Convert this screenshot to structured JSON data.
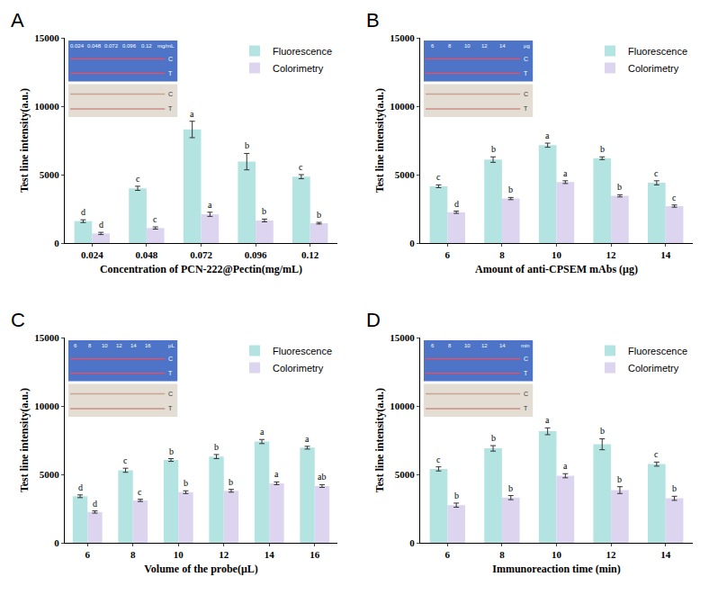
{
  "chart_data": [
    {
      "type": "bar",
      "panel": "A",
      "x_label": "Concentration of PCN-222@Pectin(mg/mL)",
      "y_label": "Test line intensity(a.u.)",
      "categories": [
        "0.024",
        "0.048",
        "0.072",
        "0.096",
        "0.12"
      ],
      "series": [
        {
          "name": "Fluorescence",
          "color": "#b4e4e2",
          "values": [
            1600,
            4000,
            8300,
            5950,
            4850
          ],
          "errors": [
            100,
            150,
            600,
            600,
            150
          ],
          "letters": [
            "d",
            "c",
            "a",
            "b",
            "c"
          ]
        },
        {
          "name": "Colorimetry",
          "color": "#ddd5f0",
          "values": [
            700,
            1100,
            2100,
            1650,
            1450
          ],
          "errors": [
            80,
            80,
            150,
            100,
            60
          ],
          "letters": [
            "d",
            "c",
            "a",
            "b",
            "b"
          ]
        }
      ],
      "ylim": [
        0,
        15000
      ],
      "yticks": [
        0,
        5000,
        10000,
        15000
      ],
      "grid": false,
      "legend": "upper right",
      "inset": {
        "labels": [
          "0.024",
          "0.048",
          "0.072",
          "0.096",
          "0.12"
        ],
        "unit": "mg/mL",
        "lines": [
          "C",
          "T"
        ]
      }
    },
    {
      "type": "bar",
      "panel": "B",
      "x_label": "Amount of anti-CPSEM mAbs (μg)",
      "y_label": "Test line intensity(a.u.)",
      "categories": [
        "6",
        "8",
        "10",
        "12",
        "14"
      ],
      "series": [
        {
          "name": "Fluorescence",
          "color": "#b4e4e2",
          "values": [
            4150,
            6100,
            7150,
            6200,
            4400
          ],
          "errors": [
            100,
            200,
            150,
            100,
            150
          ],
          "letters": [
            "c",
            "b",
            "a",
            "b",
            "c"
          ]
        },
        {
          "name": "Colorimetry",
          "color": "#ddd5f0",
          "values": [
            2250,
            3250,
            4450,
            3450,
            2700
          ],
          "errors": [
            80,
            80,
            100,
            80,
            80
          ],
          "letters": [
            "d",
            "b",
            "a",
            "b",
            "c"
          ]
        }
      ],
      "ylim": [
        0,
        15000
      ],
      "yticks": [
        0,
        5000,
        10000,
        15000
      ],
      "grid": false,
      "legend": "upper right",
      "inset": {
        "labels": [
          "6",
          "8",
          "10",
          "12",
          "14"
        ],
        "unit": "μg",
        "lines": [
          "C",
          "T"
        ]
      }
    },
    {
      "type": "bar",
      "panel": "C",
      "x_label": "Volume of the probe(μL)",
      "y_label": "Test line intensity(a.u.)",
      "categories": [
        "6",
        "8",
        "10",
        "12",
        "14",
        "16"
      ],
      "series": [
        {
          "name": "Fluorescence",
          "color": "#b4e4e2",
          "values": [
            3400,
            5300,
            6050,
            6300,
            7400,
            6950
          ],
          "errors": [
            100,
            150,
            100,
            150,
            150,
            100
          ],
          "letters": [
            "d",
            "c",
            "b",
            "b",
            "a",
            "a"
          ]
        },
        {
          "name": "Colorimetry",
          "color": "#ddd5f0",
          "values": [
            2250,
            3100,
            3700,
            3800,
            4350,
            4150
          ],
          "errors": [
            80,
            80,
            100,
            100,
            100,
            100
          ],
          "letters": [
            "d",
            "c",
            "b",
            "b",
            "a",
            "ab"
          ]
        }
      ],
      "ylim": [
        0,
        15000
      ],
      "yticks": [
        0,
        5000,
        10000,
        15000
      ],
      "grid": false,
      "legend": "upper right",
      "inset": {
        "labels": [
          "6",
          "8",
          "10",
          "12",
          "14",
          "16"
        ],
        "unit": "μL",
        "lines": [
          "C",
          "T"
        ]
      }
    },
    {
      "type": "bar",
      "panel": "D",
      "x_label": "Immunoreaction time (min)",
      "y_label": "Test line intensity(a.u.)",
      "categories": [
        "6",
        "8",
        "10",
        "12",
        "14"
      ],
      "series": [
        {
          "name": "Fluorescence",
          "color": "#b4e4e2",
          "values": [
            5400,
            6900,
            8150,
            7200,
            5750
          ],
          "errors": [
            150,
            200,
            250,
            400,
            150
          ],
          "letters": [
            "c",
            "b",
            "a",
            "b",
            "c"
          ]
        },
        {
          "name": "Colorimetry",
          "color": "#ddd5f0",
          "values": [
            2750,
            3300,
            4900,
            3850,
            3250
          ],
          "errors": [
            150,
            150,
            150,
            250,
            150
          ],
          "letters": [
            "b",
            "b",
            "a",
            "b",
            "b"
          ]
        }
      ],
      "ylim": [
        0,
        15000
      ],
      "yticks": [
        0,
        5000,
        10000,
        15000
      ],
      "grid": false,
      "legend": "upper right",
      "inset": {
        "labels": [
          "6",
          "8",
          "10",
          "12",
          "14"
        ],
        "unit": "min",
        "lines": [
          "C",
          "T"
        ]
      }
    }
  ]
}
